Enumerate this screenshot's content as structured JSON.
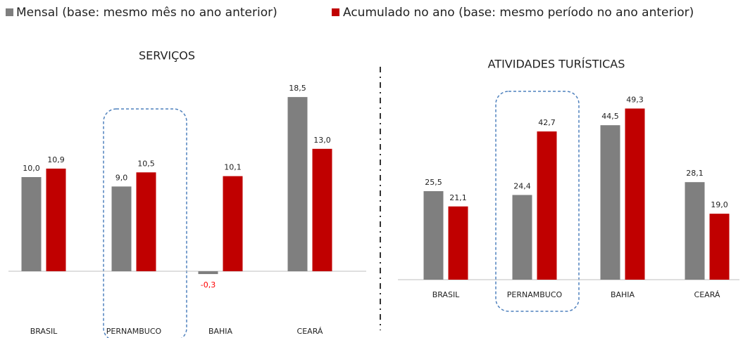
{
  "chart_data": [
    {
      "type": "bar",
      "title": "SERVIÇOS",
      "categories": [
        "BRASIL",
        "PERNAMBUCO",
        "BAHIA",
        "CEARÁ"
      ],
      "series": [
        {
          "name": "Mensal (base: mesmo mês no ano anterior)",
          "color": "#7f7f7f",
          "values": [
            10.0,
            9.0,
            -0.3,
            18.5
          ],
          "value_labels": [
            "10,0",
            "9,0",
            "-0,3",
            "18,5"
          ]
        },
        {
          "name": "Acumulado no ano (base: mesmo período no ano anterior)",
          "color": "#c00000",
          "values": [
            10.9,
            10.5,
            10.1,
            13.0
          ],
          "value_labels": [
            "10,9",
            "10,5",
            "10,1",
            "13,0"
          ]
        }
      ]
    },
    {
      "type": "bar",
      "title": "ATIVIDADES TURÍSTICAS",
      "categories": [
        "BRASIL",
        "PERNAMBUCO",
        "BAHIA",
        "CEARÁ"
      ],
      "series": [
        {
          "name": "Mensal (base: mesmo mês no ano anterior)",
          "color": "#7f7f7f",
          "values": [
            25.5,
            24.4,
            44.5,
            28.1
          ],
          "value_labels": [
            "25,5",
            "24,4",
            "44,5",
            "28,1"
          ]
        },
        {
          "name": "Acumulado no ano (base: mesmo período no ano anterior)",
          "color": "#c00000",
          "values": [
            21.1,
            42.7,
            49.3,
            19.0
          ],
          "value_labels": [
            "21,1",
            "42,7",
            "49,3",
            "19,0"
          ]
        }
      ]
    }
  ]
}
